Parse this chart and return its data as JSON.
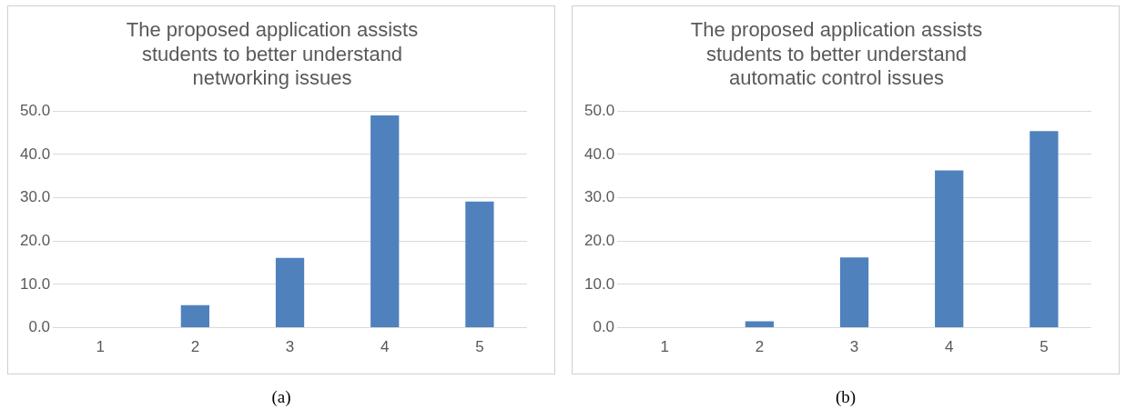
{
  "chart_data": [
    {
      "type": "bar",
      "title": "The proposed application assists students to better understand networking issues",
      "categories": [
        "1",
        "2",
        "3",
        "4",
        "5"
      ],
      "values": [
        0,
        5.2,
        16.1,
        49.0,
        29.1
      ],
      "color": "#4f81bd",
      "ylim": [
        0,
        50
      ],
      "yticks": [
        {
          "value": 0,
          "label": "0.0"
        },
        {
          "value": 10,
          "label": "10.0"
        },
        {
          "value": 20,
          "label": "20.0"
        },
        {
          "value": 30,
          "label": "30.0"
        },
        {
          "value": 40,
          "label": "40.0"
        },
        {
          "value": 50,
          "label": "50.0"
        }
      ],
      "grid": "y",
      "legend": false,
      "annotations": [
        "(a)"
      ]
    },
    {
      "type": "bar",
      "title": "The proposed application assists students to better understand automatic control issues",
      "categories": [
        "1",
        "2",
        "3",
        "4",
        "5"
      ],
      "values": [
        0,
        1.5,
        16.2,
        36.3,
        45.4
      ],
      "color": "#4f81bd",
      "ylim": [
        0,
        50
      ],
      "yticks": [
        {
          "value": 0,
          "label": "0.0"
        },
        {
          "value": 10,
          "label": "10.0"
        },
        {
          "value": 20,
          "label": "20.0"
        },
        {
          "value": 30,
          "label": "30.0"
        },
        {
          "value": 40,
          "label": "40.0"
        },
        {
          "value": 50,
          "label": "50.0"
        }
      ],
      "grid": "y",
      "legend": false,
      "annotations": [
        "(b)"
      ]
    }
  ]
}
